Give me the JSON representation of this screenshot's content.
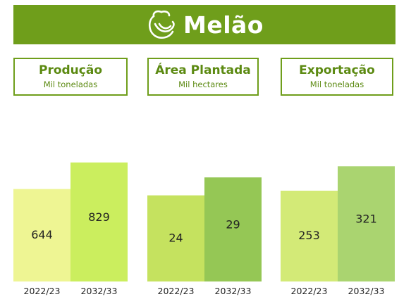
{
  "header": {
    "title": "Melão",
    "background": "#6f9e1b",
    "icon": "melon-icon"
  },
  "chart_data": [
    {
      "type": "bar",
      "title": "Produção",
      "subtitle": "Mil toneladas",
      "categories": [
        "2022/23",
        "2032/33"
      ],
      "values": [
        644,
        829
      ],
      "colors": [
        "#eef593",
        "#cbee5e"
      ],
      "ylim": [
        0,
        1000
      ],
      "grid": false
    },
    {
      "type": "bar",
      "title": "Área Plantada",
      "subtitle": "Mil hectares",
      "categories": [
        "2022/23",
        "2032/33"
      ],
      "values": [
        24,
        29
      ],
      "colors": [
        "#c5e25f",
        "#95c755"
      ],
      "ylim": [
        0,
        40
      ],
      "grid": false
    },
    {
      "type": "bar",
      "title": "Exportação",
      "subtitle": "Mil toneladas",
      "categories": [
        "2022/23",
        "2032/33"
      ],
      "values": [
        253,
        321
      ],
      "colors": [
        "#d3ea77",
        "#aad470"
      ],
      "ylim": [
        0,
        400
      ],
      "grid": false
    }
  ]
}
